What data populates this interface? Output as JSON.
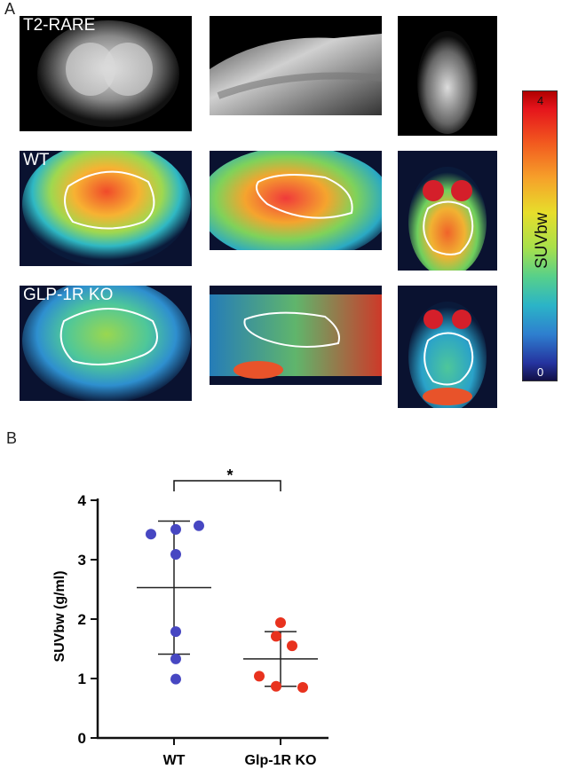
{
  "panels": {
    "a": "A",
    "b": "B"
  },
  "images": {
    "rows": [
      {
        "label": "T2-RARE"
      },
      {
        "label": "WT"
      },
      {
        "label": "GLP-1R KO"
      }
    ],
    "colorbar": {
      "label": "SUVbw",
      "max": "4",
      "min": "0"
    }
  },
  "chart_data": {
    "type": "scatter",
    "title": "",
    "xlabel": "",
    "ylabel": "SUVbw (g/ml)",
    "ylim": [
      0,
      4
    ],
    "yticks": [
      "0",
      "1",
      "2",
      "3",
      "4"
    ],
    "categories": [
      "WT",
      "Glp-1R KO"
    ],
    "series": [
      {
        "name": "WT",
        "color": "#4747c2",
        "values": [
          3.43,
          3.51,
          3.57,
          3.09,
          1.79,
          1.33,
          0.99
        ],
        "mean": 2.53,
        "sd_low": 1.41,
        "sd_high": 3.65
      },
      {
        "name": "Glp-1R KO",
        "color": "#e8321e",
        "values": [
          1.94,
          1.71,
          1.55,
          1.04,
          0.87,
          0.85
        ],
        "mean": 1.33,
        "sd_low": 0.87,
        "sd_high": 1.79
      }
    ],
    "significance": "*"
  }
}
